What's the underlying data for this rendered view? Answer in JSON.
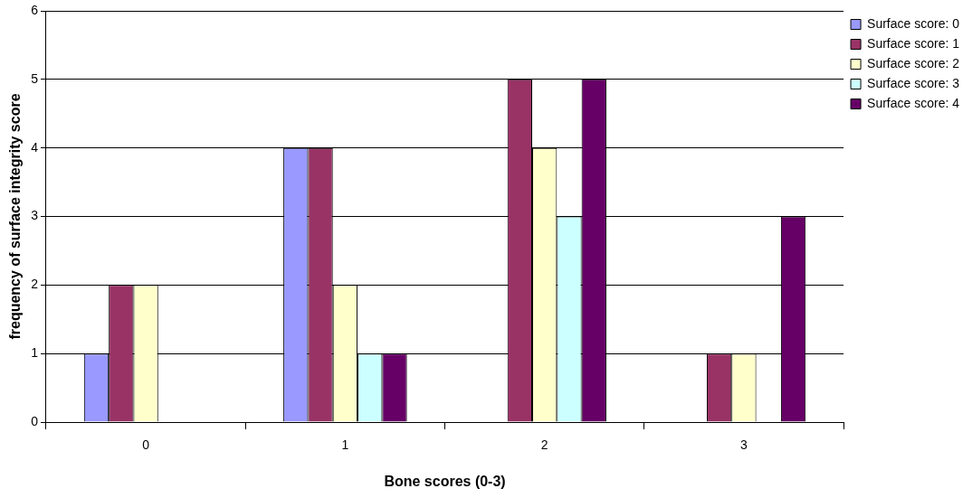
{
  "chart_data": {
    "type": "bar",
    "xlabel": "Bone scores (0-3)",
    "ylabel": "frequency of surface integrity score",
    "categories": [
      "0",
      "1",
      "2",
      "3"
    ],
    "series": [
      {
        "name": "Surface score: 0",
        "color": "#9999ff",
        "values": [
          1,
          4,
          0,
          0
        ]
      },
      {
        "name": "Surface score: 1",
        "color": "#993366",
        "values": [
          2,
          4,
          5,
          1
        ]
      },
      {
        "name": "Surface score: 2",
        "color": "#ffffcc",
        "values": [
          2,
          2,
          4,
          1
        ]
      },
      {
        "name": "Surface score: 3",
        "color": "#ccffff",
        "values": [
          0,
          1,
          3,
          0
        ]
      },
      {
        "name": "Surface score: 4",
        "color": "#660066",
        "values": [
          0,
          1,
          5,
          3
        ]
      }
    ],
    "ylim": [
      0,
      6
    ],
    "yticks": [
      0,
      1,
      2,
      3,
      4,
      5,
      6
    ],
    "grid": "y",
    "legend": "top right"
  }
}
